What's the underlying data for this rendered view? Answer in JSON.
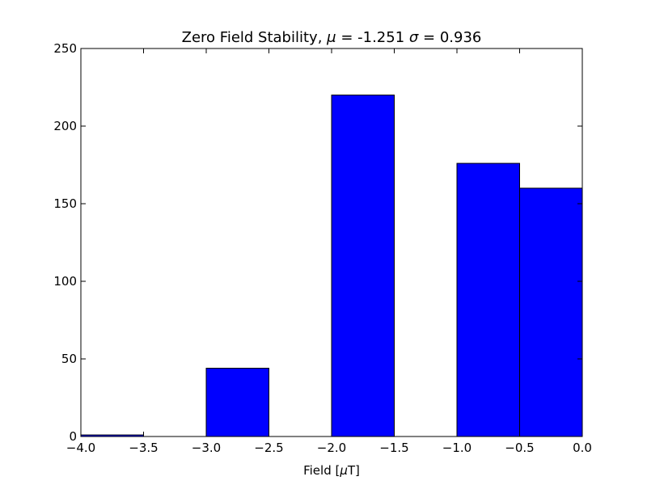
{
  "chart_data": {
    "type": "bar",
    "title_text": "Zero Field Stability, ",
    "title_mu": "μ",
    "title_mu_value": " = -1.251 ",
    "title_sigma": "σ",
    "title_sigma_value": " = 0.936",
    "xlabel_prefix": "Field [",
    "xlabel_mu": "μ",
    "xlabel_suffix": "T]",
    "ylabel": "",
    "xlim": [
      -4.0,
      0.0
    ],
    "ylim": [
      0,
      250
    ],
    "xticks": [
      -4.0,
      -3.5,
      -3.0,
      -2.5,
      -2.0,
      -1.5,
      -1.0,
      -0.5,
      0.0
    ],
    "xtick_labels": [
      "−4.0",
      "−3.5",
      "−3.0",
      "−2.5",
      "−2.0",
      "−1.5",
      "−1.0",
      "−0.5",
      "0.0"
    ],
    "yticks": [
      0,
      50,
      100,
      150,
      200,
      250
    ],
    "ytick_labels": [
      "0",
      "50",
      "100",
      "150",
      "200",
      "250"
    ],
    "bins": [
      {
        "x0": -4.0,
        "x1": -3.5,
        "value": 1
      },
      {
        "x0": -3.0,
        "x1": -2.5,
        "value": 44
      },
      {
        "x0": -2.0,
        "x1": -1.5,
        "value": 220
      },
      {
        "x0": -1.0,
        "x1": -0.5,
        "value": 176
      },
      {
        "x0": -0.5,
        "x1": 0.0,
        "value": 160
      }
    ],
    "bar_width_fraction": 1.0,
    "bar_color": "#0000ff",
    "edge_color": "#000000",
    "grid": false,
    "legend": "none"
  }
}
